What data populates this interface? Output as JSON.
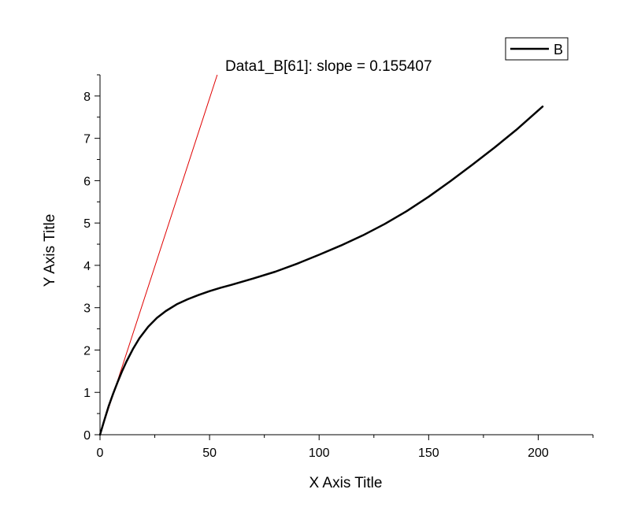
{
  "chart_data": {
    "type": "line",
    "xlabel": "X Axis Title",
    "ylabel": "Y Axis Title",
    "xlim": [
      0,
      225
    ],
    "ylim": [
      0,
      8.5
    ],
    "x_ticks": [
      0,
      50,
      100,
      150,
      200
    ],
    "x_tick_labels": [
      "0",
      "50",
      "100",
      "150",
      "200"
    ],
    "y_ticks": [
      0,
      1,
      2,
      3,
      4,
      5,
      6,
      7,
      8
    ],
    "y_tick_labels": [
      "0",
      "1",
      "2",
      "3",
      "4",
      "5",
      "6",
      "7",
      "8"
    ],
    "grid": false,
    "legend_position": "top-right",
    "series": [
      {
        "name": "B",
        "color": "#000000",
        "x": [
          0,
          2,
          4,
          6,
          8,
          10,
          12,
          15,
          18,
          22,
          26,
          30,
          35,
          40,
          45,
          50,
          55,
          60,
          70,
          80,
          90,
          100,
          110,
          120,
          130,
          140,
          150,
          160,
          170,
          180,
          190,
          202
        ],
        "y": [
          0,
          0.35,
          0.68,
          0.97,
          1.24,
          1.49,
          1.72,
          2.02,
          2.28,
          2.55,
          2.76,
          2.92,
          3.08,
          3.2,
          3.3,
          3.39,
          3.47,
          3.54,
          3.69,
          3.85,
          4.04,
          4.25,
          4.47,
          4.71,
          4.98,
          5.28,
          5.62,
          5.99,
          6.38,
          6.78,
          7.2,
          7.75
        ]
      }
    ],
    "tangent_line": {
      "label": "Data1_B[61]: slope = 0.155407",
      "slope": 0.155407,
      "x": [
        0,
        53.5
      ],
      "y": [
        0,
        8.5
      ],
      "color": "#e00000"
    }
  }
}
